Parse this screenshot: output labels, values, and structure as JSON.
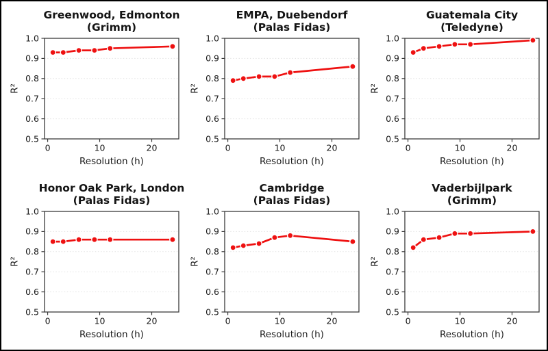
{
  "figure": {
    "background": "#ffffff",
    "border_color": "#000000",
    "accent_color": "#ee1111"
  },
  "chart_data": [
    {
      "type": "line",
      "title": "Greenwood, Edmonton",
      "subtitle": "(Grimm)",
      "xlabel": "Resolution (h)",
      "ylabel": "R²",
      "x": [
        1,
        3,
        6,
        9,
        12,
        24
      ],
      "y": [
        0.93,
        0.93,
        0.94,
        0.94,
        0.95,
        0.96
      ],
      "xlim": [
        -0.6,
        25.2
      ],
      "ylim": [
        0.5,
        1.0
      ],
      "xticks": [
        0,
        10,
        20
      ],
      "yticks": [
        0.5,
        0.6,
        0.7,
        0.8,
        0.9,
        1.0
      ],
      "line_color": "#ee1111",
      "marker": "circle",
      "grid": "horizontal-dotted",
      "legend": false
    },
    {
      "type": "line",
      "title": "EMPA, Duebendorf",
      "subtitle": "(Palas Fidas)",
      "xlabel": "Resolution (h)",
      "ylabel": "R²",
      "x": [
        1,
        3,
        6,
        9,
        12,
        24
      ],
      "y": [
        0.79,
        0.8,
        0.81,
        0.81,
        0.83,
        0.86
      ],
      "xlim": [
        -0.6,
        25.2
      ],
      "ylim": [
        0.5,
        1.0
      ],
      "xticks": [
        0,
        10,
        20
      ],
      "yticks": [
        0.5,
        0.6,
        0.7,
        0.8,
        0.9,
        1.0
      ],
      "line_color": "#ee1111",
      "marker": "circle",
      "grid": "horizontal-dotted",
      "legend": false
    },
    {
      "type": "line",
      "title": "Guatemala City",
      "subtitle": "(Teledyne)",
      "xlabel": "Resolution (h)",
      "ylabel": "R²",
      "x": [
        1,
        3,
        6,
        9,
        12,
        24
      ],
      "y": [
        0.93,
        0.95,
        0.96,
        0.97,
        0.97,
        0.99
      ],
      "xlim": [
        -0.6,
        25.2
      ],
      "ylim": [
        0.5,
        1.0
      ],
      "xticks": [
        0,
        10,
        20
      ],
      "yticks": [
        0.5,
        0.6,
        0.7,
        0.8,
        0.9,
        1.0
      ],
      "line_color": "#ee1111",
      "marker": "circle",
      "grid": "horizontal-dotted",
      "legend": false
    },
    {
      "type": "line",
      "title": "Honor Oak Park, London",
      "subtitle": "(Palas Fidas)",
      "xlabel": "Resolution (h)",
      "ylabel": "R²",
      "x": [
        1,
        3,
        6,
        9,
        12,
        24
      ],
      "y": [
        0.85,
        0.85,
        0.86,
        0.86,
        0.86,
        0.86
      ],
      "xlim": [
        -0.6,
        25.2
      ],
      "ylim": [
        0.5,
        1.0
      ],
      "xticks": [
        0,
        10,
        20
      ],
      "yticks": [
        0.5,
        0.6,
        0.7,
        0.8,
        0.9,
        1.0
      ],
      "line_color": "#ee1111",
      "marker": "circle",
      "grid": "horizontal-dotted",
      "legend": false
    },
    {
      "type": "line",
      "title": "Cambridge",
      "subtitle": "(Palas Fidas)",
      "xlabel": "Resolution (h)",
      "ylabel": "R²",
      "x": [
        1,
        3,
        6,
        9,
        12,
        24
      ],
      "y": [
        0.82,
        0.83,
        0.84,
        0.87,
        0.88,
        0.85
      ],
      "xlim": [
        -0.6,
        25.2
      ],
      "ylim": [
        0.5,
        1.0
      ],
      "xticks": [
        0,
        10,
        20
      ],
      "yticks": [
        0.5,
        0.6,
        0.7,
        0.8,
        0.9,
        1.0
      ],
      "line_color": "#ee1111",
      "marker": "circle",
      "grid": "horizontal-dotted",
      "legend": false
    },
    {
      "type": "line",
      "title": "Vaderbijlpark",
      "subtitle": "(Grimm)",
      "xlabel": "Resolution (h)",
      "ylabel": "R²",
      "x": [
        1,
        3,
        6,
        9,
        12,
        24
      ],
      "y": [
        0.82,
        0.86,
        0.87,
        0.89,
        0.89,
        0.9
      ],
      "xlim": [
        -0.6,
        25.2
      ],
      "ylim": [
        0.5,
        1.0
      ],
      "xticks": [
        0,
        10,
        20
      ],
      "yticks": [
        0.5,
        0.6,
        0.7,
        0.8,
        0.9,
        1.0
      ],
      "line_color": "#ee1111",
      "marker": "circle",
      "grid": "horizontal-dotted",
      "legend": false
    }
  ]
}
